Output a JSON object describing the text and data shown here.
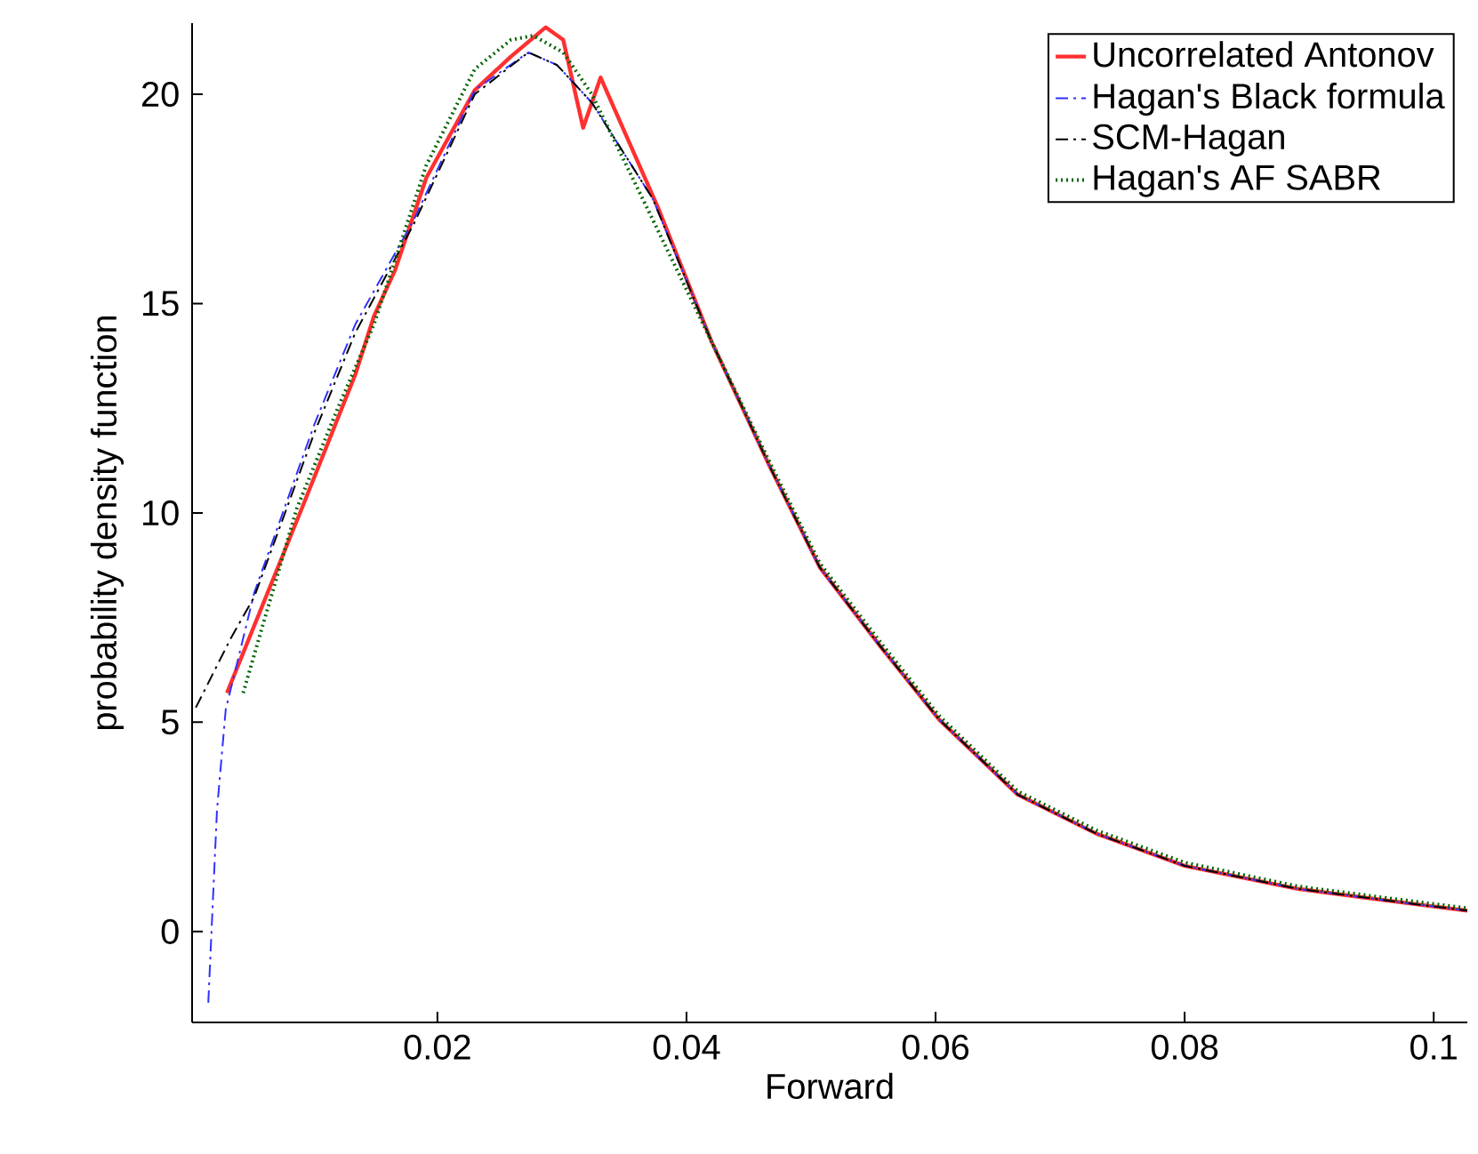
{
  "chart_data": {
    "type": "line",
    "xlabel": "Forward",
    "ylabel": "probability density function",
    "xlim": [
      0.0003,
      0.1027
    ],
    "ylim": [
      -2.17,
      21.7
    ],
    "xticks": [
      0.02,
      0.04,
      0.06,
      0.08,
      0.1
    ],
    "yticks": [
      0,
      5,
      10,
      15,
      20
    ],
    "grid": false,
    "legend": "top right",
    "marker": "none",
    "series": [
      {
        "name": "Uncorrelated Antonov",
        "color": "#ff3030",
        "line_style": "solid",
        "x": [
          0.0031,
          0.0091,
          0.0134,
          0.0149,
          0.0166,
          0.0191,
          0.023,
          0.0259,
          0.0287,
          0.0301,
          0.0317,
          0.0331,
          0.0377,
          0.042,
          0.0467,
          0.0507,
          0.0556,
          0.0603,
          0.0666,
          0.0729,
          0.08,
          0.0891,
          0.0989,
          0.1027
        ],
        "values": [
          5.7,
          10.1,
          13.3,
          14.7,
          15.8,
          18.0,
          20.1,
          20.9,
          21.6,
          21.3,
          19.2,
          20.4,
          17.3,
          14.1,
          11.1,
          8.7,
          6.8,
          5.06,
          3.27,
          2.34,
          1.57,
          1.02,
          0.64,
          0.5
        ]
      },
      {
        "name": "Hagan's Black formula",
        "color": "#3030ff",
        "line_style": "dashdot",
        "x": [
          0.0016,
          0.0023,
          0.003,
          0.0053,
          0.0101,
          0.0134,
          0.0181,
          0.023,
          0.0273,
          0.0296,
          0.0324,
          0.0373,
          0.042,
          0.0467,
          0.0507,
          0.0556,
          0.0603,
          0.0666,
          0.0729,
          0.08,
          0.0891,
          0.0989,
          0.1027
        ],
        "values": [
          -1.7,
          2.9,
          5.3,
          8.1,
          12.1,
          14.5,
          17.0,
          20.1,
          21.0,
          20.7,
          19.8,
          17.5,
          14.1,
          11.1,
          8.7,
          6.8,
          5.06,
          3.27,
          2.34,
          1.57,
          1.02,
          0.64,
          0.5
        ]
      },
      {
        "name": "SCM-Hagan",
        "color": "#000000",
        "line_style": "dashdot",
        "x": [
          0.0006,
          0.0034,
          0.0053,
          0.0101,
          0.0134,
          0.0181,
          0.023,
          0.0273,
          0.0296,
          0.0324,
          0.0373,
          0.042,
          0.0467,
          0.0507,
          0.0556,
          0.0603,
          0.0666,
          0.0729,
          0.08,
          0.0891,
          0.0989,
          0.1027
        ],
        "values": [
          5.35,
          7.0,
          8.0,
          11.9,
          14.3,
          16.9,
          20.0,
          21.0,
          20.7,
          19.8,
          17.5,
          14.1,
          11.1,
          8.7,
          6.8,
          5.06,
          3.27,
          2.34,
          1.57,
          1.02,
          0.64,
          0.5
        ]
      },
      {
        "name": "Hagan's AF SABR",
        "color": "#006400",
        "line_style": "dotted",
        "x": [
          0.0044,
          0.0087,
          0.012,
          0.0149,
          0.0191,
          0.023,
          0.0259,
          0.0277,
          0.0301,
          0.0324,
          0.0373,
          0.042,
          0.0467,
          0.0507,
          0.0556,
          0.0603,
          0.0666,
          0.0729,
          0.08,
          0.0891,
          0.0989,
          0.1027
        ],
        "values": [
          5.7,
          10.1,
          12.5,
          14.5,
          18.3,
          20.6,
          21.3,
          21.4,
          21.0,
          20.0,
          17.0,
          14.1,
          11.2,
          8.8,
          6.9,
          5.15,
          3.35,
          2.42,
          1.65,
          1.08,
          0.7,
          0.56
        ]
      }
    ]
  }
}
